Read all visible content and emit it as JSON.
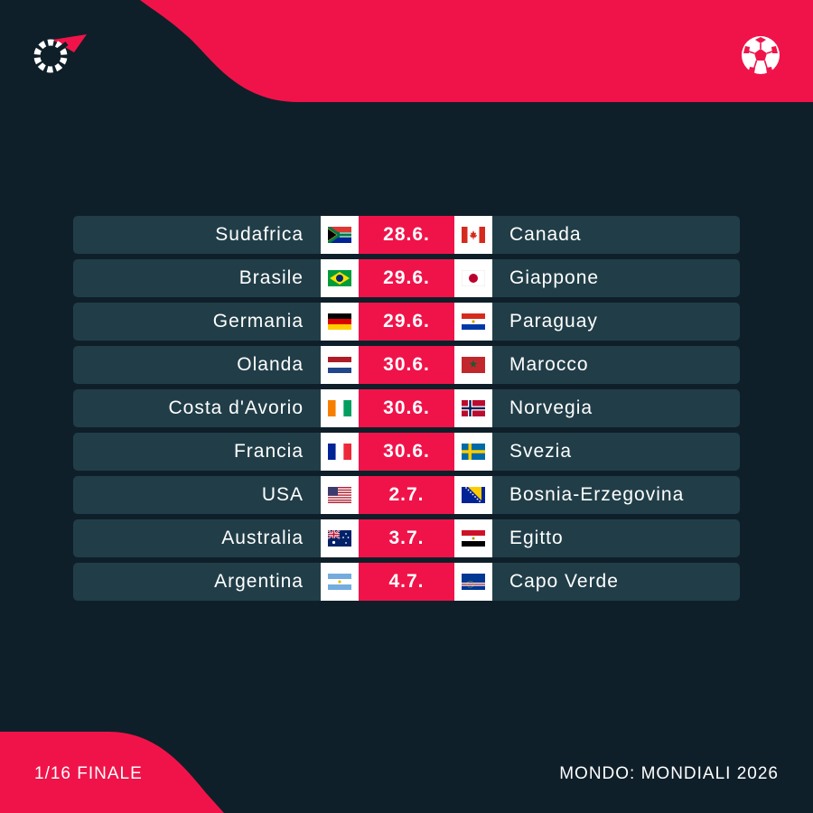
{
  "colors": {
    "background": "#0f1f29",
    "accent": "#f0134a",
    "row": "#213e48"
  },
  "brand": {
    "logo_icon": "flashscore-logo-icon",
    "sport_icon": "soccer-ball-icon"
  },
  "matches": [
    {
      "home": "Sudafrica",
      "home_flag": "south-africa",
      "date": "28.6.",
      "away": "Canada",
      "away_flag": "canada"
    },
    {
      "home": "Brasile",
      "home_flag": "brazil",
      "date": "29.6.",
      "away": "Giappone",
      "away_flag": "japan"
    },
    {
      "home": "Germania",
      "home_flag": "germany",
      "date": "29.6.",
      "away": "Paraguay",
      "away_flag": "paraguay"
    },
    {
      "home": "Olanda",
      "home_flag": "netherlands",
      "date": "30.6.",
      "away": "Marocco",
      "away_flag": "morocco"
    },
    {
      "home": "Costa d'Avorio",
      "home_flag": "ivory-coast",
      "date": "30.6.",
      "away": "Norvegia",
      "away_flag": "norway"
    },
    {
      "home": "Francia",
      "home_flag": "france",
      "date": "30.6.",
      "away": "Svezia",
      "away_flag": "sweden"
    },
    {
      "home": "USA",
      "home_flag": "usa",
      "date": "2.7.",
      "away": "Bosnia-Erzegovina",
      "away_flag": "bosnia"
    },
    {
      "home": "Australia",
      "home_flag": "australia",
      "date": "3.7.",
      "away": "Egitto",
      "away_flag": "egypt"
    },
    {
      "home": "Argentina",
      "home_flag": "argentina",
      "date": "4.7.",
      "away": "Capo Verde",
      "away_flag": "cape-verde"
    }
  ],
  "footer": {
    "stage": "1/16 FINALE",
    "competition": "MONDO: MONDIALI 2026"
  }
}
